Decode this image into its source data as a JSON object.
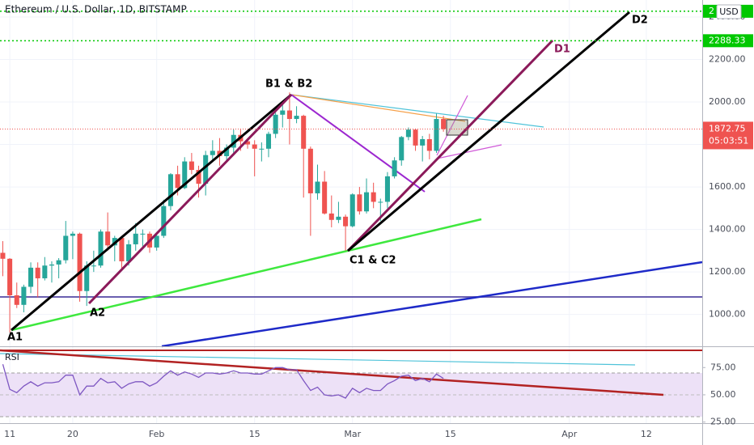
{
  "header": {
    "title": "Ethereum / U.S. Dollar, 1D, BITSTAMP",
    "currency": "USD"
  },
  "chart_data": [
    {
      "type": "candlestick",
      "up_color": "#26a69a",
      "down_color": "#ef5350",
      "open": [
        1290,
        1262,
        1090,
        1045,
        1130,
        1220,
        1170,
        1230,
        1235,
        1255,
        1370,
        1380,
        1110,
        1230,
        1230,
        1390,
        1325,
        1360,
        1250,
        1330,
        1380,
        1380,
        1315,
        1370,
        1510,
        1660,
        1595,
        1720,
        1680,
        1615,
        1750,
        1770,
        1745,
        1785,
        1845,
        1815,
        1800,
        1780,
        1780,
        1850,
        1940,
        1960,
        1920,
        1935,
        1780,
        1570,
        1625,
        1475,
        1445,
        1460,
        1415,
        1565,
        1485,
        1575,
        1530,
        1530,
        1650,
        1725,
        1835,
        1870,
        1795,
        1825,
        1770,
        1920
      ],
      "high": [
        1345,
        1265,
        1150,
        1140,
        1245,
        1245,
        1270,
        1250,
        1265,
        1440,
        1390,
        1385,
        1250,
        1300,
        1400,
        1480,
        1370,
        1370,
        1350,
        1430,
        1400,
        1390,
        1375,
        1540,
        1665,
        1700,
        1740,
        1760,
        1700,
        1770,
        1820,
        1830,
        1800,
        1870,
        1870,
        1830,
        1820,
        1810,
        1860,
        1950,
        2000,
        2045,
        1980,
        1940,
        1790,
        1705,
        1675,
        1560,
        1530,
        1470,
        1570,
        1600,
        1640,
        1620,
        1545,
        1670,
        1740,
        1840,
        1880,
        1875,
        1840,
        1850,
        1945,
        1935
      ],
      "low": [
        1180,
        915,
        1030,
        1010,
        1100,
        1080,
        1160,
        1150,
        1170,
        1240,
        1260,
        1060,
        1040,
        1200,
        1220,
        1300,
        1250,
        1210,
        1230,
        1300,
        1320,
        1290,
        1300,
        1360,
        1490,
        1560,
        1590,
        1660,
        1550,
        1560,
        1720,
        1700,
        1720,
        1760,
        1770,
        1780,
        1650,
        1720,
        1740,
        1830,
        1880,
        1800,
        1900,
        1550,
        1370,
        1540,
        1470,
        1410,
        1430,
        1300,
        1410,
        1470,
        1475,
        1500,
        1440,
        1500,
        1640,
        1700,
        1820,
        1770,
        1720,
        1730,
        1760,
        1860
      ],
      "close": [
        1262,
        1090,
        1045,
        1130,
        1220,
        1170,
        1230,
        1235,
        1255,
        1370,
        1380,
        1110,
        1230,
        1230,
        1390,
        1325,
        1360,
        1250,
        1330,
        1380,
        1380,
        1315,
        1370,
        1510,
        1660,
        1595,
        1720,
        1680,
        1615,
        1750,
        1770,
        1745,
        1785,
        1845,
        1815,
        1800,
        1780,
        1780,
        1850,
        1940,
        1960,
        1920,
        1935,
        1780,
        1570,
        1625,
        1475,
        1445,
        1460,
        1415,
        1565,
        1485,
        1575,
        1530,
        1530,
        1650,
        1725,
        1835,
        1870,
        1795,
        1825,
        1770,
        1920,
        1872.75
      ],
      "xlim": [
        -0.4,
        100
      ],
      "xticks": [
        {
          "value": 1,
          "label": "11"
        },
        {
          "value": 10,
          "label": "20"
        },
        {
          "value": 22,
          "label": "Feb"
        },
        {
          "value": 36,
          "label": "15"
        },
        {
          "value": 50,
          "label": "Mar"
        },
        {
          "value": 64,
          "label": "15"
        },
        {
          "value": 81,
          "label": "Apr"
        },
        {
          "value": 92,
          "label": "12"
        }
      ],
      "ylim": [
        850,
        2480
      ],
      "yticks": [
        {
          "value": 1000,
          "label": "1000.00"
        },
        {
          "value": 1200,
          "label": "1200.00"
        },
        {
          "value": 1400,
          "label": "1400.00"
        },
        {
          "value": 1600,
          "label": "1600.00"
        },
        {
          "value": 1800,
          "label": "1800.00"
        },
        {
          "value": 2000,
          "label": "2000.00"
        },
        {
          "value": 2200,
          "label": "2200.00"
        },
        {
          "value": 2400,
          "label": "2400.00"
        }
      ],
      "price_lines": [
        {
          "value": 2427,
          "label": "2",
          "color": "#00c800"
        },
        {
          "value": 2288.33,
          "label": "2288.33",
          "color": "#00c800"
        }
      ],
      "last_price": {
        "value": 1872.75,
        "label": "1872.75",
        "countdown": "05:03:51",
        "color": "#ef5350"
      },
      "annotations": [
        "A1",
        "A2",
        "B1 & B2",
        "C1 & C2",
        "D1",
        "D2"
      ],
      "grid": true
    },
    {
      "type": "line",
      "title": "RSI",
      "color": "#7e57c2",
      "values": [
        78,
        55,
        52,
        58,
        62,
        58,
        61,
        61,
        62,
        68,
        68,
        50,
        58,
        58,
        65,
        61,
        62,
        56,
        60,
        62,
        62,
        58,
        61,
        67,
        72,
        68,
        71,
        69,
        66,
        70,
        70,
        69,
        70,
        72,
        70,
        70,
        69,
        69,
        72,
        75,
        75,
        73,
        73,
        63,
        54,
        57,
        50,
        49,
        50,
        47,
        56,
        52,
        56,
        54,
        54,
        60,
        63,
        67,
        68,
        63,
        65,
        62,
        69,
        65
      ],
      "ylim": [
        24,
        93
      ],
      "yticks": [
        {
          "value": 75,
          "label": "75.00"
        },
        {
          "value": 50,
          "label": "50.00"
        },
        {
          "value": 25,
          "label": "25.00"
        }
      ]
    }
  ]
}
